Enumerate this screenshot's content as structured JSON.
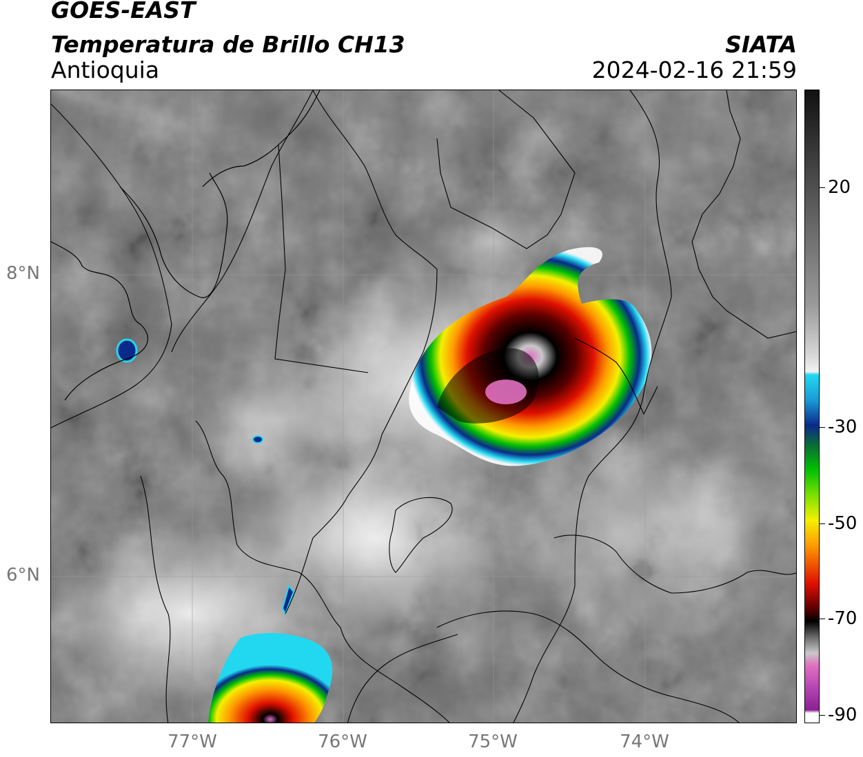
{
  "header": {
    "line1": "GOES-EAST",
    "line2": "Temperatura de Brillo CH13",
    "region": "Antioquia",
    "org": "SIATA",
    "datetime": "2024-02-16 21:59"
  },
  "axes": {
    "lat_ticks": [
      "8°N",
      "6°N"
    ],
    "lon_ticks": [
      "77°W",
      "76°W",
      "75°W",
      "74°W"
    ]
  },
  "colorbar": {
    "labels": [
      "20",
      "-30",
      "-50",
      "-70",
      "-90"
    ],
    "palette": {
      "warm_gray_top": "#1a1a1a",
      "gray_mid": "#7a7a7a",
      "white": "#f2f2f2",
      "cyan": "#22d8f0",
      "blue": "#0a2a8a",
      "green": "#00c000",
      "light_green": "#7ae000",
      "yellow": "#f4f000",
      "orange": "#ff9a00",
      "red": "#e01000",
      "dark_red": "#5a0000",
      "black": "#000000",
      "light_gray": "#c8c8c8",
      "pink": "#e070c0",
      "purple": "#8a2090"
    }
  }
}
